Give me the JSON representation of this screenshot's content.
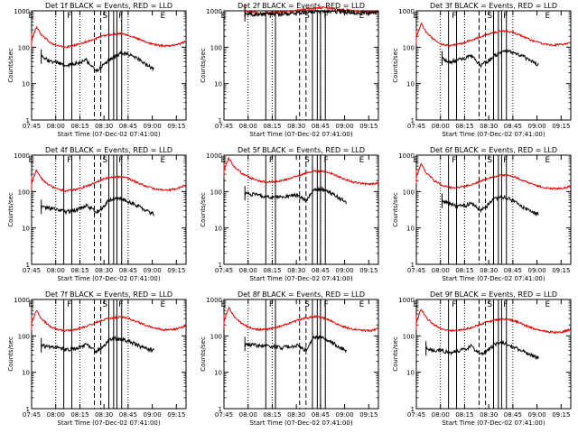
{
  "figure": {
    "colors": {
      "events": "#000000",
      "lld": "#e00000",
      "axis": "#000000",
      "marker": "#000000"
    },
    "common": {
      "ylabel": "Counts/sec",
      "xlabel": "Start Time (07-Dec-02 07:41:00)",
      "y_log": true,
      "ylim": [
        1,
        1000
      ],
      "y_ticks": [
        1,
        10,
        100,
        1000
      ],
      "y_tick_labels": [
        "1",
        "10",
        "100",
        "1000"
      ],
      "x_range_min": [
        4,
        100
      ],
      "x_ticks_min": [
        4,
        19,
        34,
        49,
        64,
        79,
        94
      ],
      "x_tick_labels": [
        "07:45",
        "08:00",
        "08:15",
        "08:30",
        "08:45",
        "09:00",
        "09:15"
      ],
      "dotted_lines_min": [
        19,
        34,
        64
      ]
    },
    "chart_data": [
      {
        "type": "line",
        "title": "Det 1f BLACK = Events, RED = LLD",
        "segment_labels": [
          "E",
          "F",
          "S",
          "F",
          "E"
        ],
        "segment_label_min": [
          2,
          26,
          48,
          58,
          84
        ],
        "solid_markers_min": [
          24,
          29,
          52,
          55,
          57,
          60
        ],
        "dashed_markers_min": [
          43,
          47
        ],
        "series": [
          {
            "name": "LLD",
            "kind": "lld",
            "x": [
              4,
              7,
              10,
              15,
              20,
              25,
              30,
              35,
              40,
              45,
              50,
              55,
              60,
              65,
              70,
              75,
              80,
              85,
              90,
              95,
              100
            ],
            "y": [
              150,
              360,
              220,
              140,
              110,
              100,
              110,
              130,
              150,
              180,
              210,
              230,
              240,
              210,
              170,
              140,
              120,
              110,
              110,
              120,
              145
            ]
          },
          {
            "name": "Events",
            "kind": "events",
            "x": [
              10,
              15,
              20,
              25,
              30,
              35,
              38,
              44,
              48,
              52,
              56,
              60,
              65,
              70,
              75,
              80
            ],
            "y": [
              55,
              42,
              38,
              30,
              34,
              40,
              44,
              22,
              30,
              45,
              55,
              70,
              62,
              48,
              33,
              25
            ]
          }
        ]
      },
      {
        "type": "line",
        "title": "Det 2f BLACK = Events, RED = LLD",
        "segment_labels": [
          "E",
          "F",
          "S",
          "F",
          "E"
        ],
        "segment_label_min": [
          2,
          32,
          54,
          66,
          88
        ],
        "solid_markers_min": [
          30,
          36,
          59,
          62,
          64,
          67
        ],
        "dashed_markers_min": [
          51,
          55
        ],
        "series": [
          {
            "name": "LLD",
            "kind": "lld",
            "x": [
              17,
              25,
              35,
              45,
              55,
              65,
              75,
              85,
              95,
              100
            ],
            "y": [
              980,
              870,
              900,
              960,
              1120,
              1220,
              1130,
              1000,
              930,
              960
            ]
          },
          {
            "name": "Events",
            "kind": "events",
            "x": [
              17,
              25,
              35,
              45,
              55,
              65,
              75,
              85,
              95,
              100
            ],
            "y": [
              800,
              810,
              820,
              850,
              920,
              990,
              960,
              900,
              880,
              900
            ]
          }
        ]
      },
      {
        "type": "line",
        "title": "Det 3f BLACK = Events, RED = LLD",
        "segment_labels": [
          "E",
          "F",
          "S",
          "F",
          "E"
        ],
        "segment_label_min": [
          2,
          26,
          48,
          58,
          84
        ],
        "solid_markers_min": [
          24,
          29,
          52,
          55,
          57,
          60
        ],
        "dashed_markers_min": [
          43,
          47
        ],
        "series": [
          {
            "name": "LLD",
            "kind": "lld",
            "x": [
              4,
              7,
              10,
              15,
              20,
              25,
              30,
              35,
              40,
              45,
              50,
              55,
              60,
              65,
              70,
              75,
              80,
              85,
              90,
              95,
              100
            ],
            "y": [
              190,
              450,
              260,
              160,
              120,
              110,
              120,
              140,
              165,
              200,
              240,
              270,
              280,
              250,
              200,
              160,
              135,
              120,
              115,
              120,
              135
            ]
          },
          {
            "name": "Events",
            "kind": "events",
            "x": [
              20,
              25,
              30,
              35,
              38,
              44,
              48,
              52,
              56,
              60,
              65,
              70,
              75,
              80
            ],
            "y": [
              50,
              40,
              45,
              52,
              58,
              32,
              40,
              58,
              68,
              78,
              72,
              58,
              42,
              33
            ]
          }
        ]
      },
      {
        "type": "line",
        "title": "Det 4f BLACK = Events, RED = LLD",
        "segment_labels": [
          "E",
          "F",
          "S",
          "F",
          "E"
        ],
        "segment_label_min": [
          2,
          26,
          48,
          58,
          84
        ],
        "solid_markers_min": [
          24,
          29,
          52,
          55,
          57,
          60
        ],
        "dashed_markers_min": [
          43,
          47
        ],
        "series": [
          {
            "name": "LLD",
            "kind": "lld",
            "x": [
              4,
              7,
              10,
              15,
              20,
              25,
              30,
              35,
              40,
              45,
              50,
              55,
              60,
              65,
              70,
              75,
              80,
              85,
              90,
              95,
              100
            ],
            "y": [
              170,
              400,
              230,
              150,
              115,
              105,
              110,
              125,
              150,
              190,
              230,
              250,
              255,
              220,
              175,
              140,
              120,
              110,
              110,
              125,
              150
            ]
          },
          {
            "name": "Events",
            "kind": "events",
            "x": [
              10,
              15,
              20,
              25,
              30,
              35,
              38,
              44,
              48,
              52,
              56,
              60,
              65,
              70,
              75,
              80
            ],
            "y": [
              38,
              35,
              32,
              28,
              30,
              36,
              42,
              28,
              35,
              58,
              65,
              62,
              52,
              40,
              30,
              24
            ]
          }
        ]
      },
      {
        "type": "line",
        "title": "Det 5f BLACK = Events, RED = LLD",
        "segment_labels": [
          "E",
          "F",
          "S",
          "F",
          "E"
        ],
        "segment_label_min": [
          2,
          32,
          54,
          66,
          88
        ],
        "solid_markers_min": [
          30,
          36,
          59,
          62,
          64,
          67
        ],
        "dashed_markers_min": [
          51,
          55
        ],
        "series": [
          {
            "name": "LLD",
            "kind": "lld",
            "x": [
              4,
              7,
              10,
              15,
              20,
              25,
              30,
              35,
              40,
              45,
              50,
              55,
              60,
              65,
              70,
              75,
              80,
              85,
              90,
              95,
              100
            ],
            "y": [
              400,
              850,
              500,
              320,
              240,
              200,
              185,
              185,
              200,
              230,
              270,
              320,
              360,
              370,
              330,
              260,
              210,
              180,
              165,
              160,
              175
            ]
          },
          {
            "name": "Events",
            "kind": "events",
            "x": [
              17,
              25,
              30,
              35,
              40,
              45,
              50,
              55,
              60,
              65,
              70,
              75,
              80
            ],
            "y": [
              90,
              80,
              75,
              70,
              72,
              78,
              80,
              55,
              120,
              115,
              95,
              70,
              50
            ]
          }
        ]
      },
      {
        "type": "line",
        "title": "Det 6f BLACK = Events, RED = LLD",
        "segment_labels": [
          "E",
          "F",
          "S",
          "F",
          "E"
        ],
        "segment_label_min": [
          2,
          26,
          48,
          58,
          84
        ],
        "solid_markers_min": [
          24,
          29,
          52,
          55,
          57,
          60
        ],
        "dashed_markers_min": [
          43,
          47
        ],
        "series": [
          {
            "name": "LLD",
            "kind": "lld",
            "x": [
              4,
              7,
              10,
              15,
              20,
              25,
              30,
              35,
              40,
              45,
              50,
              55,
              60,
              65,
              70,
              75,
              80,
              85,
              90,
              95,
              100
            ],
            "y": [
              250,
              580,
              330,
              200,
              150,
              130,
              130,
              140,
              165,
              200,
              245,
              275,
              285,
              255,
              205,
              165,
              140,
              125,
              120,
              125,
              140
            ]
          },
          {
            "name": "Events",
            "kind": "events",
            "x": [
              20,
              25,
              30,
              35,
              38,
              44,
              48,
              52,
              56,
              60,
              65,
              70,
              75,
              80
            ],
            "y": [
              55,
              45,
              40,
              42,
              48,
              30,
              40,
              60,
              70,
              68,
              52,
              38,
              28,
              24
            ]
          }
        ]
      },
      {
        "type": "line",
        "title": "Det 7f BLACK = Events, RED = LLD",
        "segment_labels": [
          "E",
          "F",
          "S",
          "F",
          "E"
        ],
        "segment_label_min": [
          2,
          26,
          48,
          58,
          84
        ],
        "solid_markers_min": [
          24,
          29,
          52,
          55,
          57,
          60
        ],
        "dashed_markers_min": [
          43,
          47
        ],
        "series": [
          {
            "name": "LLD",
            "kind": "lld",
            "x": [
              4,
              7,
              10,
              15,
              20,
              25,
              30,
              35,
              40,
              45,
              50,
              55,
              60,
              65,
              70,
              75,
              80,
              85,
              90,
              95,
              100
            ],
            "y": [
              220,
              520,
              300,
              190,
              150,
              140,
              145,
              165,
              195,
              240,
              290,
              320,
              330,
              295,
              240,
              195,
              165,
              150,
              148,
              160,
              185
            ]
          },
          {
            "name": "Events",
            "kind": "events",
            "x": [
              10,
              15,
              20,
              25,
              30,
              35,
              38,
              44,
              48,
              52,
              56,
              60,
              65,
              70,
              75,
              80
            ],
            "y": [
              55,
              50,
              48,
              42,
              44,
              50,
              58,
              38,
              45,
              78,
              85,
              82,
              70,
              55,
              45,
              40
            ]
          }
        ]
      },
      {
        "type": "line",
        "title": "Det 8f BLACK = Events, RED = LLD",
        "segment_labels": [
          "E",
          "F",
          "S",
          "F",
          "E"
        ],
        "segment_label_min": [
          2,
          32,
          54,
          66,
          88
        ],
        "solid_markers_min": [
          30,
          36,
          59,
          62,
          64,
          67
        ],
        "dashed_markers_min": [
          51,
          55
        ],
        "series": [
          {
            "name": "LLD",
            "kind": "lld",
            "x": [
              4,
              7,
              10,
              15,
              20,
              25,
              30,
              35,
              40,
              45,
              50,
              55,
              60,
              65,
              70,
              75,
              80,
              85,
              90,
              95,
              100
            ],
            "y": [
              250,
              600,
              350,
              220,
              170,
              150,
              150,
              165,
              190,
              225,
              270,
              310,
              340,
              320,
              260,
              205,
              170,
              150,
              140,
              140,
              155
            ]
          },
          {
            "name": "Events",
            "kind": "events",
            "x": [
              17,
              25,
              30,
              35,
              40,
              45,
              50,
              55,
              60,
              65,
              70,
              75,
              80
            ],
            "y": [
              60,
              55,
              52,
              50,
              48,
              52,
              55,
              40,
              95,
              90,
              72,
              52,
              38
            ]
          }
        ]
      },
      {
        "type": "line",
        "title": "Det 9f BLACK = Events, RED = LLD",
        "segment_labels": [
          "E",
          "F",
          "S",
          "F",
          "E"
        ],
        "segment_label_min": [
          2,
          26,
          48,
          58,
          84
        ],
        "solid_markers_min": [
          24,
          29,
          52,
          55,
          57,
          60
        ],
        "dashed_markers_min": [
          43,
          47
        ],
        "series": [
          {
            "name": "LLD",
            "kind": "lld",
            "x": [
              4,
              7,
              10,
              15,
              20,
              25,
              30,
              35,
              40,
              45,
              50,
              55,
              60,
              65,
              70,
              75,
              80,
              85,
              90,
              95,
              100
            ],
            "y": [
              230,
              550,
              320,
              200,
              155,
              140,
              140,
              155,
              180,
              215,
              255,
              285,
              290,
              260,
              210,
              170,
              145,
              130,
              125,
              130,
              150
            ]
          },
          {
            "name": "Events",
            "kind": "events",
            "x": [
              10,
              15,
              20,
              25,
              30,
              35,
              38,
              44,
              48,
              52,
              56,
              60,
              65,
              70,
              75,
              80
            ],
            "y": [
              45,
              40,
              40,
              35,
              38,
              45,
              52,
              30,
              40,
              55,
              68,
              60,
              48,
              38,
              30,
              24
            ]
          }
        ]
      }
    ]
  }
}
